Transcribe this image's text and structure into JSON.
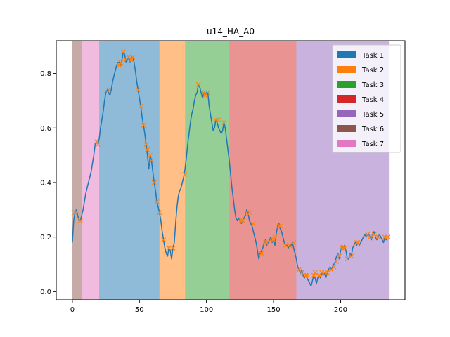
{
  "chart_data": {
    "type": "line",
    "title": "u14_HA_A0",
    "xlabel": "",
    "ylabel": "",
    "xlim": [
      -12,
      248
    ],
    "ylim": [
      -0.03,
      0.92
    ],
    "xticks": [
      0,
      50,
      100,
      150,
      200
    ],
    "yticks": [
      0.0,
      0.2,
      0.4,
      0.6,
      0.8
    ],
    "ytick_labels": [
      "0.0",
      "0.2",
      "0.4",
      "0.6",
      "0.8"
    ],
    "grid": false,
    "legend_position": "top-right",
    "task_regions": [
      {
        "name": "Task 6",
        "x0": 0,
        "x1": 7,
        "color": "#8c564b"
      },
      {
        "name": "Task 7",
        "x0": 7,
        "x1": 20,
        "color": "#e377c2"
      },
      {
        "name": "Task 1",
        "x0": 20,
        "x1": 65,
        "color": "#1f77b4"
      },
      {
        "name": "Task 2",
        "x0": 65,
        "x1": 84,
        "color": "#ff7f0e"
      },
      {
        "name": "Task 3",
        "x0": 84,
        "x1": 117,
        "color": "#2ca02c"
      },
      {
        "name": "Task 4",
        "x0": 117,
        "x1": 167,
        "color": "#d62728"
      },
      {
        "name": "Task 5",
        "x0": 167,
        "x1": 236,
        "color": "#9467bd"
      }
    ],
    "legend": [
      {
        "label": "Task 1",
        "color": "#1f77b4"
      },
      {
        "label": "Task 2",
        "color": "#ff7f0e"
      },
      {
        "label": "Task 3",
        "color": "#2ca02c"
      },
      {
        "label": "Task 4",
        "color": "#d62728"
      },
      {
        "label": "Task 5",
        "color": "#9467bd"
      },
      {
        "label": "Task 6",
        "color": "#8c564b"
      },
      {
        "label": "Task 7",
        "color": "#e377c2"
      }
    ],
    "series": [
      {
        "color": "#1f77b4",
        "points": [
          [
            0,
            0.18
          ],
          [
            1,
            0.26
          ],
          [
            2,
            0.29
          ],
          [
            3,
            0.3
          ],
          [
            4,
            0.28
          ],
          [
            5,
            0.26
          ],
          [
            6,
            0.26
          ],
          [
            7,
            0.28
          ],
          [
            8,
            0.3
          ],
          [
            9,
            0.33
          ],
          [
            10,
            0.36
          ],
          [
            11,
            0.38
          ],
          [
            12,
            0.4
          ],
          [
            13,
            0.42
          ],
          [
            14,
            0.44
          ],
          [
            15,
            0.47
          ],
          [
            16,
            0.5
          ],
          [
            17,
            0.54
          ],
          [
            18,
            0.55
          ],
          [
            19,
            0.54
          ],
          [
            20,
            0.56
          ],
          [
            21,
            0.6
          ],
          [
            22,
            0.63
          ],
          [
            23,
            0.66
          ],
          [
            24,
            0.7
          ],
          [
            25,
            0.73
          ],
          [
            26,
            0.74
          ],
          [
            27,
            0.73
          ],
          [
            28,
            0.72
          ],
          [
            29,
            0.74
          ],
          [
            30,
            0.77
          ],
          [
            31,
            0.79
          ],
          [
            32,
            0.81
          ],
          [
            33,
            0.83
          ],
          [
            34,
            0.84
          ],
          [
            35,
            0.84
          ],
          [
            36,
            0.83
          ],
          [
            37,
            0.85
          ],
          [
            38,
            0.88
          ],
          [
            39,
            0.87
          ],
          [
            40,
            0.84
          ],
          [
            41,
            0.85
          ],
          [
            42,
            0.86
          ],
          [
            43,
            0.84
          ],
          [
            44,
            0.86
          ],
          [
            45,
            0.86
          ],
          [
            46,
            0.84
          ],
          [
            47,
            0.81
          ],
          [
            48,
            0.77
          ],
          [
            49,
            0.74
          ],
          [
            50,
            0.71
          ],
          [
            51,
            0.68
          ],
          [
            52,
            0.64
          ],
          [
            53,
            0.61
          ],
          [
            54,
            0.58
          ],
          [
            55,
            0.54
          ],
          [
            56,
            0.5
          ],
          [
            57,
            0.45
          ],
          [
            58,
            0.5
          ],
          [
            59,
            0.48
          ],
          [
            60,
            0.44
          ],
          [
            61,
            0.4
          ],
          [
            62,
            0.37
          ],
          [
            63,
            0.33
          ],
          [
            64,
            0.31
          ],
          [
            65,
            0.29
          ],
          [
            66,
            0.26
          ],
          [
            67,
            0.22
          ],
          [
            68,
            0.19
          ],
          [
            69,
            0.16
          ],
          [
            70,
            0.14
          ],
          [
            71,
            0.13
          ],
          [
            72,
            0.16
          ],
          [
            73,
            0.15
          ],
          [
            74,
            0.12
          ],
          [
            75,
            0.16
          ],
          [
            76,
            0.18
          ],
          [
            77,
            0.25
          ],
          [
            78,
            0.31
          ],
          [
            79,
            0.35
          ],
          [
            80,
            0.37
          ],
          [
            81,
            0.38
          ],
          [
            82,
            0.4
          ],
          [
            83,
            0.42
          ],
          [
            84,
            0.45
          ],
          [
            85,
            0.49
          ],
          [
            86,
            0.54
          ],
          [
            87,
            0.58
          ],
          [
            88,
            0.62
          ],
          [
            89,
            0.65
          ],
          [
            90,
            0.67
          ],
          [
            91,
            0.7
          ],
          [
            92,
            0.72
          ],
          [
            93,
            0.73
          ],
          [
            94,
            0.76
          ],
          [
            95,
            0.75
          ],
          [
            96,
            0.73
          ],
          [
            97,
            0.71
          ],
          [
            98,
            0.73
          ],
          [
            99,
            0.72
          ],
          [
            100,
            0.73
          ],
          [
            101,
            0.73
          ],
          [
            102,
            0.68
          ],
          [
            103,
            0.65
          ],
          [
            104,
            0.62
          ],
          [
            105,
            0.59
          ],
          [
            106,
            0.6
          ],
          [
            107,
            0.63
          ],
          [
            108,
            0.62
          ],
          [
            109,
            0.6
          ],
          [
            110,
            0.59
          ],
          [
            111,
            0.58
          ],
          [
            112,
            0.59
          ],
          [
            113,
            0.62
          ],
          [
            114,
            0.6
          ],
          [
            115,
            0.56
          ],
          [
            116,
            0.52
          ],
          [
            117,
            0.48
          ],
          [
            118,
            0.43
          ],
          [
            119,
            0.38
          ],
          [
            120,
            0.34
          ],
          [
            121,
            0.3
          ],
          [
            122,
            0.27
          ],
          [
            123,
            0.26
          ],
          [
            124,
            0.27
          ],
          [
            125,
            0.26
          ],
          [
            126,
            0.25
          ],
          [
            127,
            0.26
          ],
          [
            128,
            0.27
          ],
          [
            129,
            0.28
          ],
          [
            130,
            0.3
          ],
          [
            131,
            0.29
          ],
          [
            132,
            0.26
          ],
          [
            133,
            0.25
          ],
          [
            134,
            0.24
          ],
          [
            135,
            0.22
          ],
          [
            136,
            0.2
          ],
          [
            137,
            0.18
          ],
          [
            138,
            0.15
          ],
          [
            139,
            0.12
          ],
          [
            140,
            0.14
          ],
          [
            141,
            0.15
          ],
          [
            142,
            0.16
          ],
          [
            143,
            0.18
          ],
          [
            144,
            0.19
          ],
          [
            145,
            0.17
          ],
          [
            146,
            0.18
          ],
          [
            147,
            0.19
          ],
          [
            148,
            0.2
          ],
          [
            149,
            0.18
          ],
          [
            150,
            0.19
          ],
          [
            151,
            0.17
          ],
          [
            152,
            0.21
          ],
          [
            153,
            0.24
          ],
          [
            154,
            0.25
          ],
          [
            155,
            0.23
          ],
          [
            156,
            0.22
          ],
          [
            157,
            0.2
          ],
          [
            158,
            0.18
          ],
          [
            159,
            0.17
          ],
          [
            160,
            0.17
          ],
          [
            161,
            0.16
          ],
          [
            162,
            0.17
          ],
          [
            163,
            0.17
          ],
          [
            164,
            0.18
          ],
          [
            165,
            0.16
          ],
          [
            166,
            0.14
          ],
          [
            167,
            0.12
          ],
          [
            168,
            0.09
          ],
          [
            169,
            0.08
          ],
          [
            170,
            0.07
          ],
          [
            171,
            0.08
          ],
          [
            172,
            0.06
          ],
          [
            173,
            0.05
          ],
          [
            174,
            0.06
          ],
          [
            175,
            0.05
          ],
          [
            176,
            0.04
          ],
          [
            177,
            0.03
          ],
          [
            178,
            0.02
          ],
          [
            179,
            0.04
          ],
          [
            180,
            0.06
          ],
          [
            181,
            0.05
          ],
          [
            182,
            0.03
          ],
          [
            183,
            0.05
          ],
          [
            184,
            0.06
          ],
          [
            185,
            0.05
          ],
          [
            186,
            0.07
          ],
          [
            187,
            0.06
          ],
          [
            188,
            0.07
          ],
          [
            189,
            0.05
          ],
          [
            190,
            0.07
          ],
          [
            191,
            0.08
          ],
          [
            192,
            0.09
          ],
          [
            193,
            0.08
          ],
          [
            194,
            0.09
          ],
          [
            195,
            0.1
          ],
          [
            196,
            0.11
          ],
          [
            197,
            0.13
          ],
          [
            198,
            0.14
          ],
          [
            199,
            0.12
          ],
          [
            200,
            0.15
          ],
          [
            201,
            0.17
          ],
          [
            202,
            0.16
          ],
          [
            203,
            0.17
          ],
          [
            204,
            0.15
          ],
          [
            205,
            0.12
          ],
          [
            206,
            0.12
          ],
          [
            207,
            0.14
          ],
          [
            208,
            0.13
          ],
          [
            209,
            0.16
          ],
          [
            210,
            0.17
          ],
          [
            211,
            0.18
          ],
          [
            212,
            0.17
          ],
          [
            213,
            0.18
          ],
          [
            214,
            0.17
          ],
          [
            215,
            0.18
          ],
          [
            216,
            0.19
          ],
          [
            217,
            0.2
          ],
          [
            218,
            0.21
          ],
          [
            219,
            0.2
          ],
          [
            220,
            0.21
          ],
          [
            221,
            0.21
          ],
          [
            222,
            0.2
          ],
          [
            223,
            0.19
          ],
          [
            224,
            0.21
          ],
          [
            225,
            0.22
          ],
          [
            226,
            0.2
          ],
          [
            227,
            0.19
          ],
          [
            228,
            0.2
          ],
          [
            229,
            0.21
          ],
          [
            230,
            0.2
          ],
          [
            231,
            0.19
          ],
          [
            232,
            0.18
          ],
          [
            233,
            0.2
          ],
          [
            234,
            0.19
          ],
          [
            235,
            0.19
          ]
        ]
      }
    ],
    "markers": {
      "color": "#ff7f0e",
      "points": [
        [
          2,
          0.29
        ],
        [
          6,
          0.26
        ],
        [
          18,
          0.55
        ],
        [
          19,
          0.54
        ],
        [
          27,
          0.74
        ],
        [
          35,
          0.83
        ],
        [
          36,
          0.84
        ],
        [
          38,
          0.88
        ],
        [
          40,
          0.85
        ],
        [
          42,
          0.86
        ],
        [
          44,
          0.85
        ],
        [
          45,
          0.86
        ],
        [
          49,
          0.74
        ],
        [
          51,
          0.68
        ],
        [
          53,
          0.61
        ],
        [
          55,
          0.54
        ],
        [
          56,
          0.52
        ],
        [
          58,
          0.5
        ],
        [
          59,
          0.48
        ],
        [
          61,
          0.4
        ],
        [
          63,
          0.33
        ],
        [
          65,
          0.29
        ],
        [
          68,
          0.19
        ],
        [
          72,
          0.16
        ],
        [
          75,
          0.16
        ],
        [
          84,
          0.43
        ],
        [
          94,
          0.76
        ],
        [
          98,
          0.73
        ],
        [
          99,
          0.72
        ],
        [
          101,
          0.73
        ],
        [
          107,
          0.63
        ],
        [
          109,
          0.63
        ],
        [
          113,
          0.62
        ],
        [
          126,
          0.26
        ],
        [
          127,
          0.26
        ],
        [
          130,
          0.29
        ],
        [
          132,
          0.29
        ],
        [
          135,
          0.25
        ],
        [
          141,
          0.14
        ],
        [
          144,
          0.18
        ],
        [
          145,
          0.18
        ],
        [
          148,
          0.19
        ],
        [
          150,
          0.19
        ],
        [
          151,
          0.2
        ],
        [
          154,
          0.24
        ],
        [
          155,
          0.24
        ],
        [
          159,
          0.17
        ],
        [
          162,
          0.17
        ],
        [
          165,
          0.18
        ],
        [
          169,
          0.08
        ],
        [
          171,
          0.07
        ],
        [
          174,
          0.06
        ],
        [
          175,
          0.06
        ],
        [
          180,
          0.06
        ],
        [
          181,
          0.07
        ],
        [
          184,
          0.06
        ],
        [
          186,
          0.07
        ],
        [
          188,
          0.07
        ],
        [
          190,
          0.07
        ],
        [
          193,
          0.08
        ],
        [
          195,
          0.09
        ],
        [
          197,
          0.11
        ],
        [
          199,
          0.13
        ],
        [
          201,
          0.16
        ],
        [
          202,
          0.16
        ],
        [
          203,
          0.16
        ],
        [
          205,
          0.12
        ],
        [
          208,
          0.13
        ],
        [
          212,
          0.18
        ],
        [
          213,
          0.18
        ],
        [
          220,
          0.21
        ],
        [
          222,
          0.2
        ],
        [
          225,
          0.21
        ],
        [
          228,
          0.2
        ],
        [
          233,
          0.2
        ],
        [
          235,
          0.2
        ]
      ]
    }
  }
}
